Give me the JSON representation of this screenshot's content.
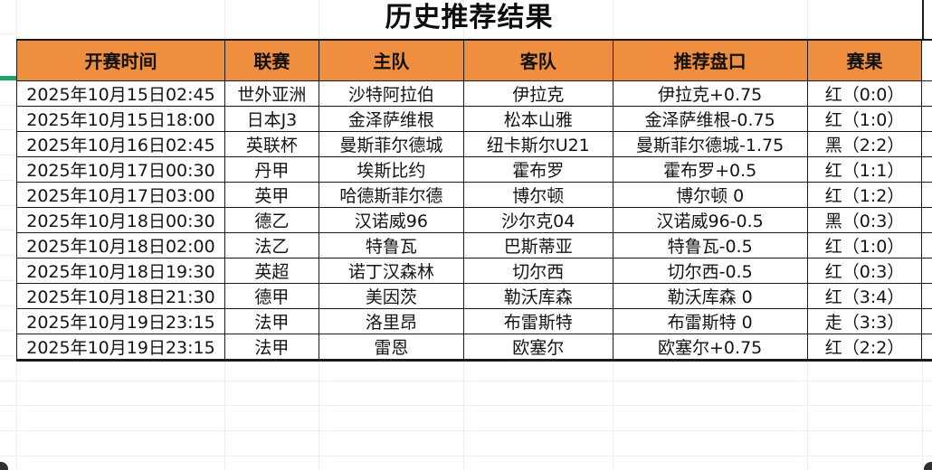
{
  "title": "历史推荐结果",
  "table": {
    "headers": [
      "开赛时间",
      "联赛",
      "主队",
      "客队",
      "推荐盘口",
      "赛果"
    ],
    "rows": [
      {
        "time": "2025年10月15日02:45",
        "league": "世外亚洲",
        "home": "沙特阿拉伯",
        "away": "伊拉克",
        "handicap": "伊拉克+0.75",
        "result": "红（0:0）",
        "result_color": "red"
      },
      {
        "time": "2025年10月15日18:00",
        "league": "日本J3",
        "home": "金泽萨维根",
        "away": "松本山雅",
        "handicap": "金泽萨维根-0.75",
        "result": "红（1:0）",
        "result_color": "red"
      },
      {
        "time": "2025年10月16日02:45",
        "league": "英联杯",
        "home": "曼斯菲尔德城",
        "away": "纽卡斯尔U21",
        "handicap": "曼斯菲尔德城-1.75",
        "result": "黑（2:2）",
        "result_color": "black"
      },
      {
        "time": "2025年10月17日00:30",
        "league": "丹甲",
        "home": "埃斯比约",
        "away": "霍布罗",
        "handicap": "霍布罗+0.5",
        "result": "红（1:1）",
        "result_color": "red"
      },
      {
        "time": "2025年10月17日03:00",
        "league": "英甲",
        "home": "哈德斯菲尔德",
        "away": "博尔顿",
        "handicap": "博尔顿 0",
        "result": "红（1:2）",
        "result_color": "red"
      },
      {
        "time": "2025年10月18日00:30",
        "league": "德乙",
        "home": "汉诺威96",
        "away": "沙尔克04",
        "handicap": "汉诺威96-0.5",
        "result": "黑（0:3）",
        "result_color": "black"
      },
      {
        "time": "2025年10月18日02:00",
        "league": "法乙",
        "home": "特鲁瓦",
        "away": "巴斯蒂亚",
        "handicap": "特鲁瓦-0.5",
        "result": "红（1:0）",
        "result_color": "red"
      },
      {
        "time": "2025年10月18日19:30",
        "league": "英超",
        "home": "诺丁汉森林",
        "away": "切尔西",
        "handicap": "切尔西-0.5",
        "result": "红（0:3）",
        "result_color": "red"
      },
      {
        "time": "2025年10月18日21:30",
        "league": "德甲",
        "home": "美因茨",
        "away": "勒沃库森",
        "handicap": "勒沃库森 0",
        "result": "红（3:4）",
        "result_color": "red"
      },
      {
        "time": "2025年10月19日23:15",
        "league": "法甲",
        "home": "洛里昂",
        "away": "布雷斯特",
        "handicap": "布雷斯特 0",
        "result": "走（3:3）",
        "result_color": "gold"
      },
      {
        "time": "2025年10月19日23:15",
        "league": "法甲",
        "home": "雷恩",
        "away": "欧塞尔",
        "handicap": "欧塞尔+0.75",
        "result": "红（2:2）",
        "result_color": "red"
      }
    ]
  },
  "colors": {
    "header_bg": "#EE8E3E",
    "result_red": "#B02A1E",
    "result_gold": "#E8A23A",
    "result_black": "#1B1B1B",
    "selection_green": "#21A366",
    "grid_light": "#F2ECEC",
    "border_dark": "#1B1B1B"
  }
}
